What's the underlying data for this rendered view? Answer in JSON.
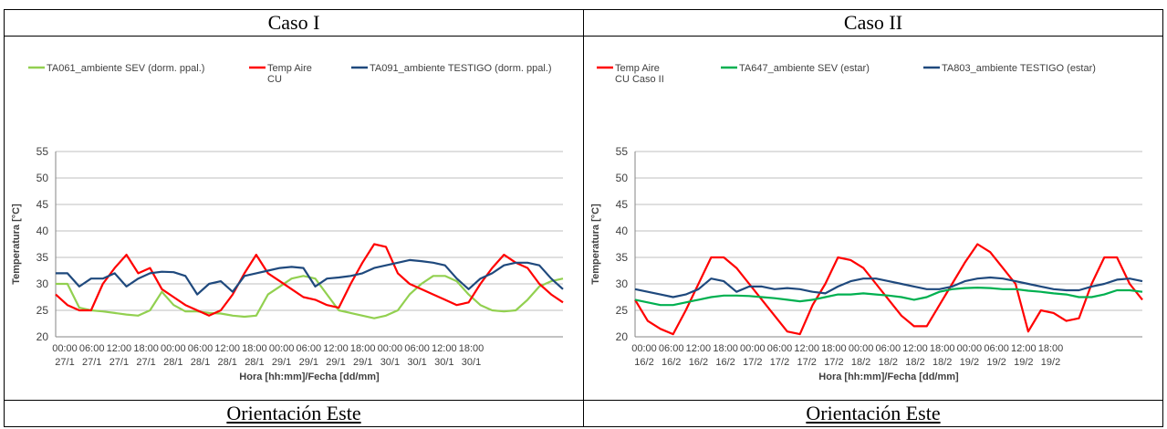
{
  "panels": [
    {
      "title": "Caso I",
      "caption": "Orientación Este"
    },
    {
      "title": "Caso II",
      "caption": "Orientación Este"
    }
  ],
  "chart_data": [
    {
      "type": "line",
      "xlabel": "Hora [hh:mm]/Fecha [dd/mm]",
      "ylabel": "Temperatura [°C]",
      "ylim": [
        20,
        55
      ],
      "yticks": [
        20,
        25,
        30,
        35,
        40,
        45,
        50,
        55
      ],
      "grid": true,
      "legend_position": "top",
      "x": [
        0,
        3,
        6,
        9,
        12,
        15,
        18,
        21,
        24,
        27,
        30,
        33,
        36,
        39,
        42,
        45,
        48,
        51,
        54,
        57,
        60,
        63,
        66,
        69,
        72,
        75,
        78,
        81,
        84,
        87,
        90,
        93,
        96,
        99,
        102,
        105,
        108,
        111,
        114,
        117,
        120,
        123,
        126,
        129
      ],
      "x_ticks": [
        {
          "time": "00:00",
          "date": "27/1"
        },
        {
          "time": "06:00",
          "date": "27/1"
        },
        {
          "time": "12:00",
          "date": "27/1"
        },
        {
          "time": "18:00",
          "date": "27/1"
        },
        {
          "time": "00:00",
          "date": "28/1"
        },
        {
          "time": "06:00",
          "date": "28/1"
        },
        {
          "time": "12:00",
          "date": "28/1"
        },
        {
          "time": "18:00",
          "date": "28/1"
        },
        {
          "time": "00:00",
          "date": "29/1"
        },
        {
          "time": "06:00",
          "date": "29/1"
        },
        {
          "time": "12:00",
          "date": "29/1"
        },
        {
          "time": "18:00",
          "date": "29/1"
        },
        {
          "time": "00:00",
          "date": "30/1"
        },
        {
          "time": "06:00",
          "date": "30/1"
        },
        {
          "time": "12:00",
          "date": "30/1"
        },
        {
          "time": "18:00",
          "date": "30/1"
        }
      ],
      "series": [
        {
          "name": "TA061_ambiente SEV (dorm. ppal.)",
          "color": "#92d050",
          "values": [
            30,
            30,
            25.5,
            25,
            24.8,
            24.5,
            24.2,
            24,
            25,
            28.5,
            26,
            24.8,
            24.8,
            24.5,
            24.4,
            24,
            23.8,
            24,
            28,
            29.5,
            31,
            31.5,
            31,
            28,
            25,
            24.5,
            24,
            23.5,
            24,
            25,
            28,
            30,
            31.5,
            31.5,
            30.5,
            28,
            26,
            25,
            24.8,
            25,
            27,
            29.5,
            30.5,
            31
          ]
        },
        {
          "name": "Temp Aire CU",
          "color": "#ff0000",
          "values": [
            28,
            26,
            25,
            25,
            30,
            33,
            35.5,
            32,
            33,
            29,
            27.5,
            26,
            25,
            24,
            25,
            28,
            32,
            35.5,
            32,
            30.5,
            29,
            27.5,
            27,
            26,
            25.5,
            30,
            34,
            37.5,
            37,
            32,
            30,
            29,
            28,
            27,
            26,
            26.5,
            30,
            33,
            35.5,
            34,
            33,
            30,
            28,
            26.5
          ]
        },
        {
          "name": "TA091_ambiente  TESTIGO (dorm. ppal.)",
          "color": "#1f497d",
          "values": [
            32,
            32,
            29.5,
            31,
            31,
            32,
            29.5,
            31,
            32,
            32.3,
            32.2,
            31.5,
            28,
            30,
            30.5,
            28.5,
            31.5,
            32,
            32.5,
            33,
            33.2,
            33,
            29.5,
            31,
            31.2,
            31.5,
            32,
            33,
            33.5,
            34,
            34.5,
            34.3,
            34,
            33.5,
            31,
            29,
            31,
            32,
            33.5,
            34,
            34,
            33.5,
            31,
            29
          ]
        }
      ]
    },
    {
      "type": "line",
      "xlabel": "Hora [hh:mm]/Fecha [dd/mm]",
      "ylabel": "Temperatura [°C]",
      "ylim": [
        20,
        55
      ],
      "yticks": [
        20,
        25,
        30,
        35,
        40,
        45,
        50,
        55
      ],
      "grid": true,
      "legend_position": "top",
      "x": [
        0,
        3,
        6,
        9,
        12,
        15,
        18,
        21,
        24,
        27,
        30,
        33,
        36,
        39,
        42,
        45,
        48,
        51,
        54,
        57,
        60,
        63,
        66,
        69,
        72,
        75,
        78,
        81,
        84,
        87,
        90,
        93,
        96,
        99,
        102,
        105,
        108,
        111,
        114,
        117,
        120
      ],
      "x_ticks": [
        {
          "time": "00:00",
          "date": "16/2"
        },
        {
          "time": "06:00",
          "date": "16/2"
        },
        {
          "time": "12:00",
          "date": "16/2"
        },
        {
          "time": "18:00",
          "date": "16/2"
        },
        {
          "time": "00:00",
          "date": "17/2"
        },
        {
          "time": "06:00",
          "date": "17/2"
        },
        {
          "time": "12:00",
          "date": "17/2"
        },
        {
          "time": "18:00",
          "date": "17/2"
        },
        {
          "time": "00:00",
          "date": "18/2"
        },
        {
          "time": "06:00",
          "date": "18/2"
        },
        {
          "time": "12:00",
          "date": "18/2"
        },
        {
          "time": "18:00",
          "date": "18/2"
        },
        {
          "time": "00:00",
          "date": "19/2"
        },
        {
          "time": "06:00",
          "date": "19/2"
        },
        {
          "time": "12:00",
          "date": "19/2"
        },
        {
          "time": "18:00",
          "date": "19/2"
        }
      ],
      "series": [
        {
          "name": "Temp Aire CU Caso II",
          "color": "#ff0000",
          "values": [
            27,
            23,
            21.5,
            20.5,
            25,
            30,
            35,
            35,
            33,
            30,
            27,
            24,
            21,
            20.5,
            26,
            30,
            35,
            34.5,
            33,
            30,
            27,
            24,
            22,
            22,
            26,
            30,
            34,
            37.5,
            36,
            33,
            30,
            21,
            25,
            24.5,
            23,
            23.5,
            30,
            35,
            35,
            30,
            27
          ]
        },
        {
          "name": "TA647_ambiente SEV (estar)",
          "color": "#00b050",
          "values": [
            27,
            26.5,
            26,
            26,
            26.5,
            27,
            27.5,
            27.8,
            27.8,
            27.7,
            27.5,
            27.3,
            27,
            26.7,
            27,
            27.5,
            28,
            28,
            28.2,
            28,
            27.8,
            27.5,
            27,
            27.5,
            28.5,
            29,
            29.2,
            29.3,
            29.2,
            29,
            29,
            28.7,
            28.5,
            28.2,
            28,
            27.5,
            27.5,
            28,
            28.8,
            28.8,
            28.5
          ]
        },
        {
          "name": "TA803_ambiente TESTIGO (estar)",
          "color": "#1f497d",
          "values": [
            29,
            28.5,
            28,
            27.5,
            28,
            29,
            31,
            30.5,
            28.5,
            29.5,
            29.5,
            29,
            29.2,
            29,
            28.5,
            28.2,
            29.5,
            30.5,
            31,
            31,
            30.5,
            30,
            29.5,
            29,
            29,
            29.5,
            30.5,
            31,
            31.2,
            31,
            30.5,
            30,
            29.5,
            29,
            28.8,
            28.8,
            29.5,
            30,
            30.8,
            31,
            30.5
          ]
        }
      ]
    }
  ]
}
